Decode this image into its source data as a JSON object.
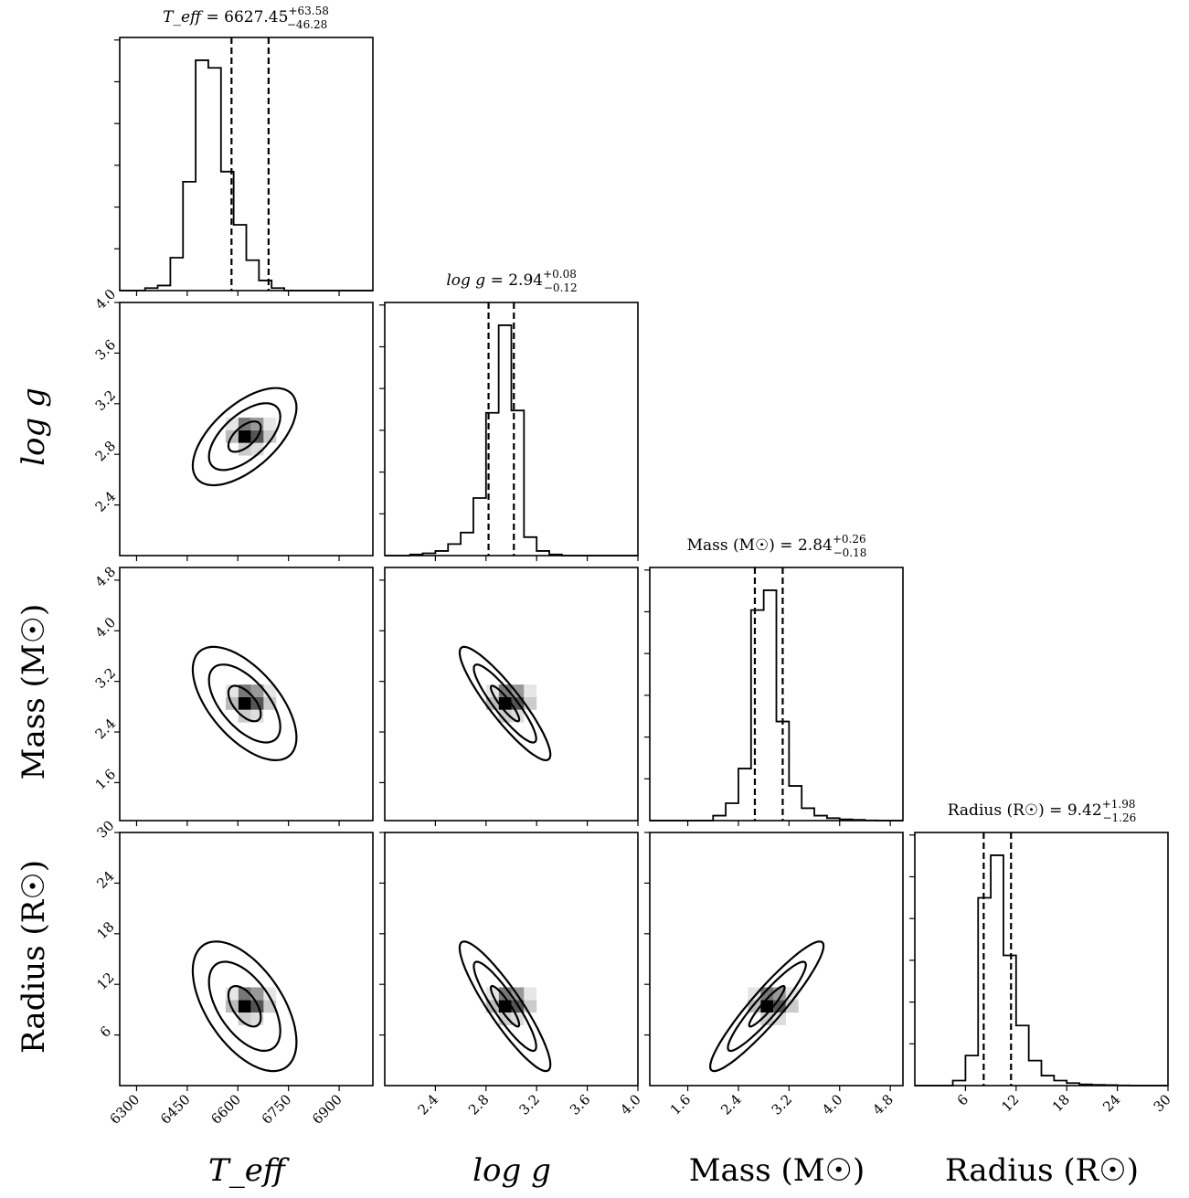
{
  "chart_data": {
    "type": "corner",
    "parameters": [
      {
        "key": "teff",
        "label": "T_eff",
        "ticks": [
          6300,
          6450,
          6600,
          6750,
          6900
        ],
        "range": [
          6250,
          7000
        ],
        "title": {
          "name": "T_eff",
          "value": "6627.45",
          "plus": "+63.58",
          "minus": "−46.28"
        },
        "quantiles": [
          6581.17,
          6691.03
        ],
        "hist_edges_start": 6250,
        "hist_bin": 37.5,
        "hist_counts": [
          0,
          0,
          0.01,
          0.02,
          0.13,
          0.43,
          0.91,
          0.88,
          0.47,
          0.26,
          0.12,
          0.04,
          0.01,
          0,
          0,
          0,
          0,
          0,
          0,
          0
        ]
      },
      {
        "key": "logg",
        "label": "log g",
        "ticks": [
          2.4,
          2.8,
          3.2,
          3.6,
          4.0
        ],
        "range": [
          2.0,
          4.0
        ],
        "title": {
          "name": "log g",
          "value": "2.94",
          "plus": "+0.08",
          "minus": "−0.12"
        },
        "quantiles": [
          2.82,
          3.02
        ],
        "hist_edges_start": 2.0,
        "hist_bin": 0.1,
        "hist_counts": [
          0,
          0,
          0.005,
          0.01,
          0.02,
          0.05,
          0.1,
          0.25,
          0.62,
          1.0,
          0.63,
          0.08,
          0.02,
          0.005,
          0,
          0,
          0,
          0,
          0,
          0
        ]
      },
      {
        "key": "mass",
        "label": "Mass (M☉)",
        "ticks": [
          1.6,
          2.4,
          3.2,
          4.0,
          4.8
        ],
        "range": [
          1.0,
          5.0
        ],
        "title": {
          "name": "Mass (M☉)",
          "value": "2.84",
          "plus": "+0.26",
          "minus": "−0.18"
        },
        "quantiles": [
          2.66,
          3.1
        ],
        "hist_edges_start": 1.0,
        "hist_bin": 0.2,
        "hist_counts": [
          0,
          0,
          0,
          0,
          0,
          0.02,
          0.07,
          0.21,
          0.85,
          0.93,
          0.4,
          0.14,
          0.05,
          0.02,
          0.01,
          0.005,
          0.003,
          0.001,
          0,
          0
        ]
      },
      {
        "key": "radius",
        "label": "Radius (R☉)",
        "ticks": [
          6,
          12,
          18,
          24,
          30
        ],
        "range": [
          0,
          30
        ],
        "title": {
          "name": "Radius (R☉)",
          "value": "9.42",
          "plus": "+1.98",
          "minus": "−1.26"
        },
        "quantiles": [
          8.16,
          11.4
        ],
        "hist_edges_start": 0,
        "hist_bin": 1.5,
        "hist_counts": [
          0,
          0,
          0,
          0.02,
          0.12,
          0.75,
          0.92,
          0.52,
          0.24,
          0.1,
          0.04,
          0.02,
          0.01,
          0.005,
          0.003,
          0.002,
          0.001,
          0,
          0,
          0
        ]
      }
    ],
    "pairs": [
      {
        "x": "teff",
        "y": "logg",
        "center": [
          6620,
          2.94
        ],
        "sx": 60,
        "sy": 0.15,
        "rho": 0.6
      },
      {
        "x": "teff",
        "y": "mass",
        "center": [
          6620,
          2.85
        ],
        "sx": 60,
        "sy": 0.35,
        "rho": -0.6
      },
      {
        "x": "logg",
        "y": "mass",
        "center": [
          2.95,
          2.85
        ],
        "sx": 0.14,
        "sy": 0.35,
        "rho": -0.9
      },
      {
        "x": "teff",
        "y": "radius",
        "center": [
          6620,
          9.4
        ],
        "sx": 60,
        "sy": 3.0,
        "rho": -0.55
      },
      {
        "x": "logg",
        "y": "radius",
        "center": [
          2.95,
          9.4
        ],
        "sx": 0.14,
        "sy": 3.0,
        "rho": -0.9
      },
      {
        "x": "mass",
        "y": "radius",
        "center": [
          2.85,
          9.4
        ],
        "sx": 0.35,
        "sy": 3.0,
        "rho": 0.93
      }
    ],
    "contour_levels": [
      0.5,
      1.1,
      1.6
    ]
  }
}
